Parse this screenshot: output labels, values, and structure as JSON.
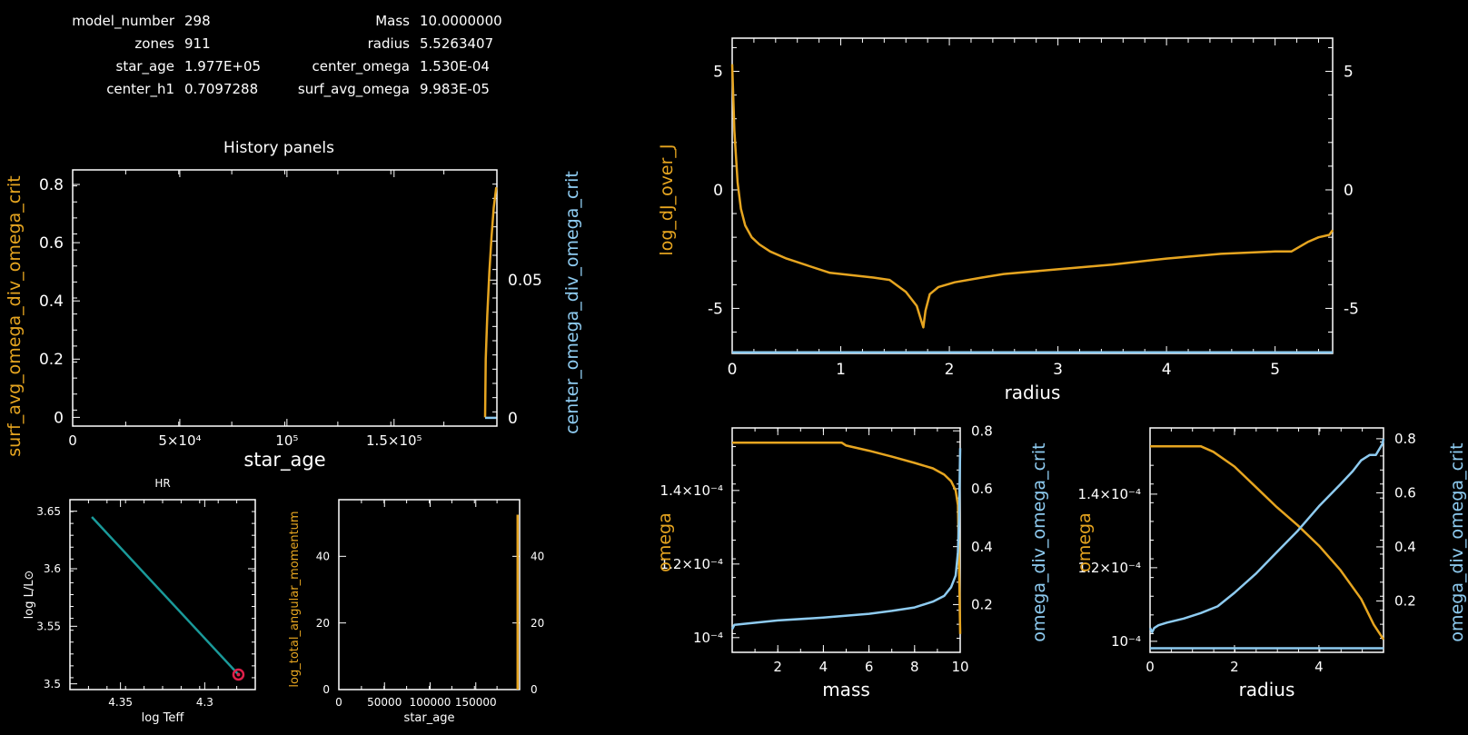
{
  "colors": {
    "background": "#000000",
    "axes": "#ffffff",
    "orange": "#e6a520",
    "blue": "#8ecbf0",
    "teal": "#1a9a9a",
    "marker": "#e0204a"
  },
  "info": {
    "left": [
      {
        "label": "model_number",
        "value": "298"
      },
      {
        "label": "zones",
        "value": "911"
      },
      {
        "label": "star_age",
        "value": "1.977E+05"
      },
      {
        "label": "center_h1",
        "value": "0.7097288"
      }
    ],
    "right": [
      {
        "label": "Mass",
        "value": "10.0000000"
      },
      {
        "label": "radius",
        "value": "5.5263407"
      },
      {
        "label": "center_omega",
        "value": "1.530E-04"
      },
      {
        "label": "surf_avg_omega",
        "value": "9.983E-05"
      }
    ]
  },
  "history_title": "History panels",
  "chart_data": [
    {
      "id": "history",
      "type": "line",
      "title": "History panels",
      "xlabel": "star_age",
      "ylabel_left": "surf_avg_omega_div_omega_crit",
      "ylabel_right": "center_omega_div_omega_crit",
      "xlim": [
        0,
        198000
      ],
      "ylim_left": [
        -0.03,
        0.85
      ],
      "ylim_right": [
        -0.003,
        0.09
      ],
      "x_ticks": [
        {
          "v": 0,
          "label": "0"
        },
        {
          "v": 50000,
          "label": "5×10⁴"
        },
        {
          "v": 100000,
          "label": "10⁵"
        },
        {
          "v": 150000,
          "label": "1.5×10⁵"
        }
      ],
      "y_ticks_left": [
        "0",
        "0.2",
        "0.4",
        "0.6",
        "0.8"
      ],
      "y_ticks_right": [
        "0",
        "0.05"
      ],
      "series": [
        {
          "axis": "left",
          "color": "orange",
          "x": [
            192500,
            192800,
            193500,
            194500,
            195500,
            196500,
            197700
          ],
          "y": [
            0.0,
            0.2,
            0.35,
            0.5,
            0.62,
            0.72,
            0.79
          ]
        },
        {
          "axis": "right",
          "color": "blue",
          "x": [
            192500,
            197700
          ],
          "y": [
            0.0,
            0.0
          ]
        }
      ]
    },
    {
      "id": "hr",
      "type": "line",
      "title": "HR",
      "xlabel": "log Teff",
      "ylabel": "log L/L⊙",
      "xlim": [
        4.38,
        4.27
      ],
      "ylim": [
        3.495,
        3.66
      ],
      "x_ticks": [
        "4.35",
        "4.3"
      ],
      "y_ticks": [
        "3.5",
        "3.55",
        "3.6",
        "3.65"
      ],
      "x": [
        4.367,
        4.28
      ],
      "y": [
        3.645,
        3.508
      ],
      "marker": {
        "x": 4.28,
        "y": 3.508
      }
    },
    {
      "id": "angmom",
      "type": "line",
      "xlabel": "star_age",
      "ylabel": "log_total_angular_momentum",
      "xlim": [
        0,
        198000
      ],
      "ylim": [
        0,
        57
      ],
      "x_ticks": [
        "0",
        "50000",
        "100000",
        "150000"
      ],
      "y_ticks": [
        "0",
        "20",
        "40"
      ],
      "y_ticks_right": [
        "0",
        "20",
        "40"
      ],
      "x": [
        197800,
        197800
      ],
      "y": [
        0,
        52.5
      ]
    },
    {
      "id": "djj",
      "type": "line",
      "xlabel": "radius",
      "ylabel": "log_dJ_over_J",
      "xlim": [
        0,
        5.53
      ],
      "ylim": [
        -6.9,
        6.4
      ],
      "x_ticks": [
        "0",
        "1",
        "2",
        "3",
        "4",
        "5"
      ],
      "y_ticks": [
        "-5",
        "0",
        "5"
      ],
      "series": [
        {
          "color": "orange",
          "x": [
            0.0,
            0.02,
            0.05,
            0.08,
            0.12,
            0.18,
            0.25,
            0.35,
            0.5,
            0.7,
            0.9,
            1.1,
            1.3,
            1.45,
            1.6,
            1.7,
            1.74,
            1.76,
            1.78,
            1.82,
            1.9,
            2.05,
            2.3,
            2.5,
            3.0,
            3.5,
            4.0,
            4.5,
            5.0,
            5.15,
            5.3,
            5.4,
            5.5,
            5.53
          ],
          "y": [
            5.3,
            2.5,
            0.3,
            -0.8,
            -1.5,
            -2.0,
            -2.3,
            -2.6,
            -2.9,
            -3.2,
            -3.5,
            -3.6,
            -3.7,
            -3.8,
            -4.3,
            -4.9,
            -5.5,
            -5.8,
            -5.1,
            -4.4,
            -4.1,
            -3.9,
            -3.7,
            -3.55,
            -3.35,
            -3.15,
            -2.9,
            -2.7,
            -2.6,
            -2.6,
            -2.2,
            -2.0,
            -1.9,
            -1.7
          ]
        },
        {
          "color": "blue",
          "x": [
            0,
            5.53
          ],
          "y": [
            -6.85,
            -6.85
          ]
        }
      ]
    },
    {
      "id": "omega_mass",
      "type": "line",
      "xlabel": "mass",
      "ylabel_left": "omega",
      "ylabel_right": "omega_div_omega_crit",
      "xlim": [
        0,
        10
      ],
      "ylim_left": [
        9.6e-05,
        0.000157
      ],
      "ylim_right": [
        0.035,
        0.81
      ],
      "x_ticks": [
        "2",
        "4",
        "6",
        "8",
        "10"
      ],
      "y_ticks_left": [
        "10⁻⁴",
        "1.2×10⁻⁴",
        "1.4×10⁻⁴"
      ],
      "y_ticks_right": [
        "0.2",
        "0.4",
        "0.6",
        "0.8"
      ],
      "series": [
        {
          "axis": "left",
          "color": "orange",
          "x": [
            0,
            4.8,
            5.0,
            6.0,
            7.0,
            8.0,
            8.8,
            9.3,
            9.6,
            9.8,
            9.9,
            9.95,
            10.0
          ],
          "y": [
            0.000153,
            0.000153,
            0.0001522,
            0.0001508,
            0.0001492,
            0.0001475,
            0.000146,
            0.0001443,
            0.0001425,
            0.00014,
            0.000136,
            0.00012,
            0.000101
          ]
        },
        {
          "axis": "right",
          "color": "blue",
          "x": [
            0,
            0.1,
            2,
            4,
            6,
            7,
            8,
            8.8,
            9.3,
            9.6,
            9.8,
            9.9,
            9.95,
            10.0
          ],
          "y": [
            0.115,
            0.13,
            0.145,
            0.155,
            0.168,
            0.178,
            0.19,
            0.21,
            0.23,
            0.26,
            0.3,
            0.38,
            0.5,
            0.74
          ]
        }
      ]
    },
    {
      "id": "omega_radius",
      "type": "line",
      "xlabel": "radius",
      "ylabel_left": "omega",
      "ylabel_right": "omega_div_omega_crit",
      "xlim": [
        0,
        5.53
      ],
      "ylim_left": [
        9.7e-05,
        0.000158
      ],
      "ylim_right": [
        0.01,
        0.84
      ],
      "x_ticks": [
        "0",
        "2",
        "4"
      ],
      "y_ticks_left": [
        "10⁻⁴",
        "1.2×10⁻⁴",
        "1.4×10⁻⁴"
      ],
      "y_ticks_right": [
        "0.2",
        "0.4",
        "0.6",
        "0.8"
      ],
      "series": [
        {
          "axis": "left",
          "color": "orange",
          "x": [
            0,
            1.2,
            1.5,
            2.0,
            2.5,
            3.0,
            3.5,
            4.0,
            4.5,
            5.0,
            5.3,
            5.53
          ],
          "y": [
            0.000153,
            0.000153,
            0.0001515,
            0.0001475,
            0.000142,
            0.0001365,
            0.0001315,
            0.000126,
            0.0001195,
            0.0001115,
            0.0001045,
            0.0001005
          ]
        },
        {
          "axis": "right",
          "color": "blue",
          "x": [
            0,
            0.05,
            0.1,
            0.2,
            0.4,
            0.8,
            1.2,
            1.6,
            2.0,
            2.5,
            3.0,
            3.5,
            4.0,
            4.5,
            4.8,
            5.0,
            5.2,
            5.35,
            5.5,
            5.53
          ],
          "y": [
            0.1,
            0.085,
            0.1,
            0.11,
            0.12,
            0.135,
            0.155,
            0.18,
            0.23,
            0.3,
            0.38,
            0.46,
            0.55,
            0.63,
            0.68,
            0.72,
            0.74,
            0.74,
            0.78,
            0.8
          ]
        },
        {
          "axis": "right",
          "color": "blue",
          "x": [
            0,
            5.53
          ],
          "y": [
            0.025,
            0.025
          ]
        }
      ]
    }
  ]
}
